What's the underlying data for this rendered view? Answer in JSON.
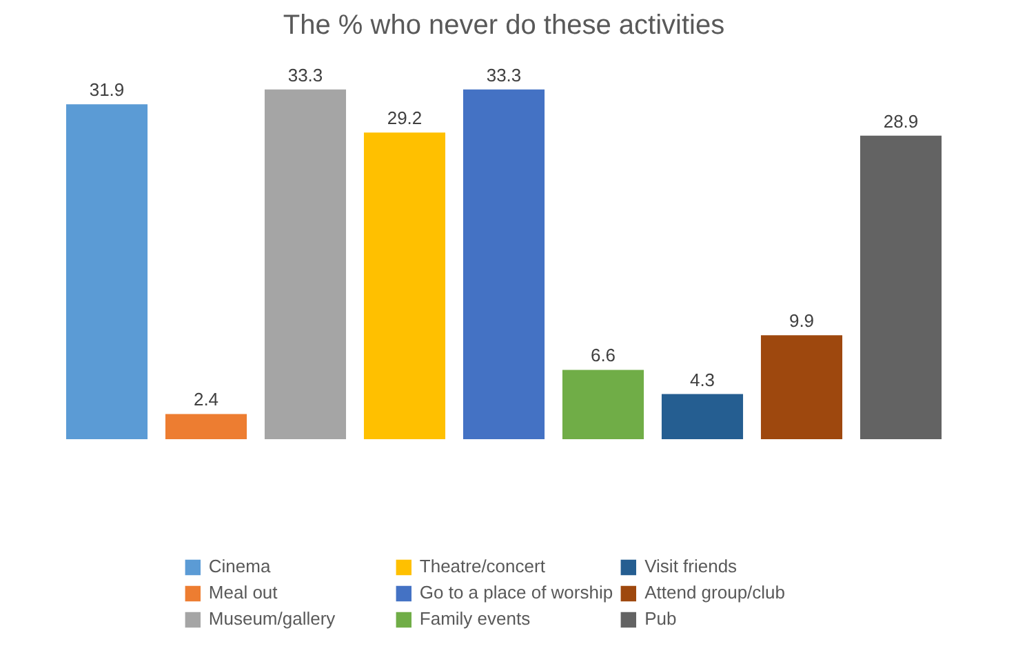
{
  "chart_data": {
    "type": "bar",
    "title": "The % who never do these activities",
    "categories": [
      null
    ],
    "data_labels": true,
    "legend": "bottom",
    "series": [
      {
        "name": "Cinema",
        "color": "#5b9bd5",
        "values": [
          31.9
        ]
      },
      {
        "name": "Meal out",
        "color": "#ed7d31",
        "values": [
          2.4
        ]
      },
      {
        "name": "Museum/gallery",
        "color": "#a5a5a5",
        "values": [
          33.3
        ]
      },
      {
        "name": "Theatre/concert",
        "color": "#ffc000",
        "values": [
          29.2
        ]
      },
      {
        "name": "Go to a place of worship",
        "color": "#4472c4",
        "values": [
          33.3
        ]
      },
      {
        "name": "Family events",
        "color": "#70ad47",
        "values": [
          6.6
        ]
      },
      {
        "name": "Visit friends",
        "color": "#255e91",
        "values": [
          4.3
        ]
      },
      {
        "name": "Attend group/club",
        "color": "#9e480e",
        "values": [
          9.9
        ]
      },
      {
        "name": "Pub",
        "color": "#636363",
        "values": [
          28.9
        ]
      }
    ]
  }
}
